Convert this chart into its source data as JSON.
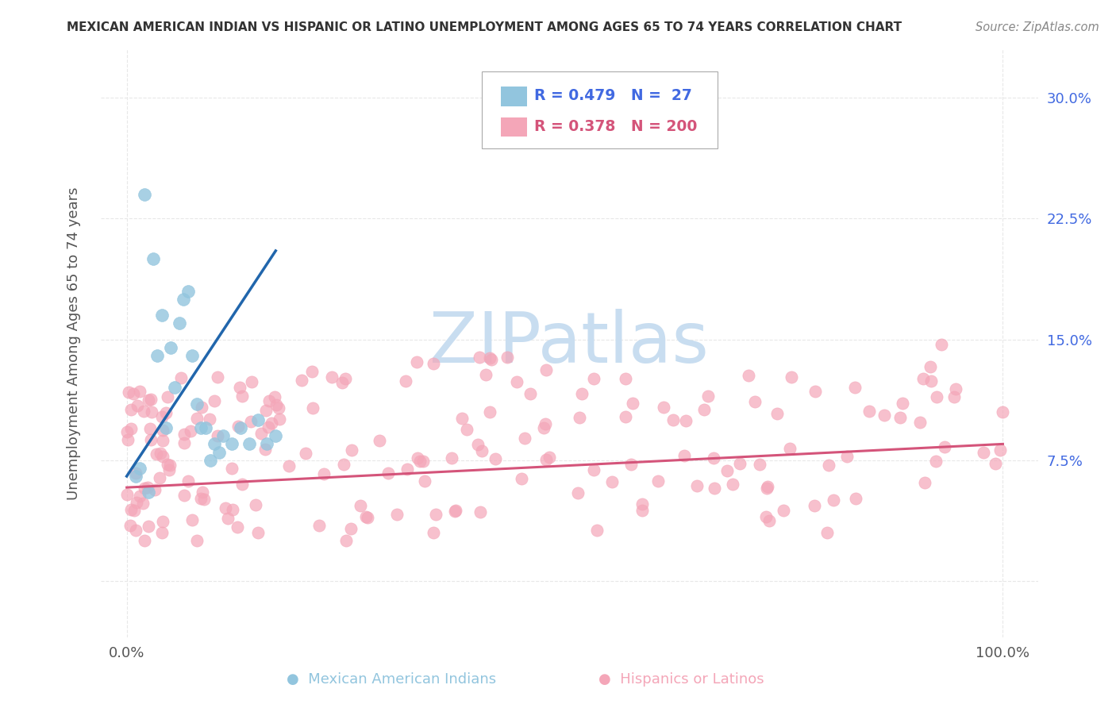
{
  "title": "MEXICAN AMERICAN INDIAN VS HISPANIC OR LATINO UNEMPLOYMENT AMONG AGES 65 TO 74 YEARS CORRELATION CHART",
  "source": "Source: ZipAtlas.com",
  "ylabel": "Unemployment Among Ages 65 to 74 years",
  "r_blue": 0.479,
  "n_blue": 27,
  "r_pink": 0.378,
  "n_pink": 200,
  "blue_color": "#92c5de",
  "pink_color": "#f4a6b8",
  "blue_line_color": "#2166ac",
  "pink_line_color": "#d4547a",
  "watermark_color": "#ddeeff",
  "title_color": "#333333",
  "source_color": "#888888",
  "ytick_color": "#4169e1",
  "ylabel_color": "#555555",
  "xtick_color": "#555555",
  "legend_border_color": "#aaaaaa",
  "grid_color": "#e8e8e8",
  "background": "#ffffff",
  "blue_x": [
    1.0,
    1.5,
    2.0,
    2.5,
    3.0,
    3.5,
    4.0,
    4.5,
    5.0,
    5.5,
    6.0,
    6.5,
    7.0,
    7.5,
    8.0,
    8.5,
    9.0,
    9.5,
    10.0,
    10.5,
    11.0,
    12.0,
    13.0,
    14.0,
    15.0,
    16.0,
    17.0
  ],
  "blue_y": [
    6.5,
    7.0,
    24.0,
    5.5,
    20.0,
    14.0,
    16.5,
    9.5,
    14.5,
    12.0,
    16.0,
    17.5,
    18.0,
    14.0,
    11.0,
    9.5,
    9.5,
    7.5,
    8.5,
    8.0,
    9.0,
    8.5,
    9.5,
    8.5,
    10.0,
    8.5,
    9.0
  ]
}
